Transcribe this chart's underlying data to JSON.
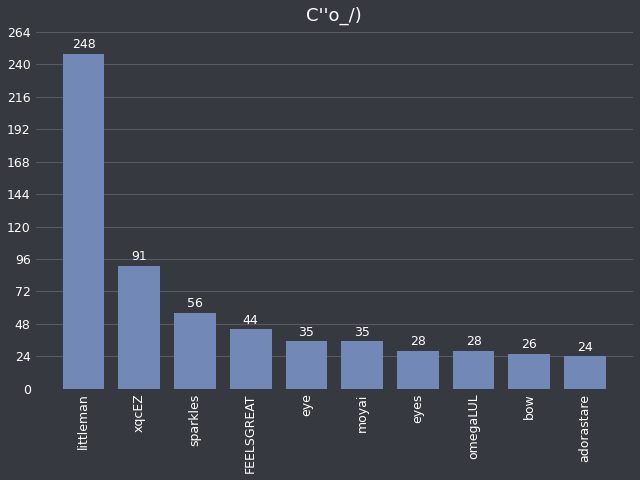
{
  "title": "C''o_/)",
  "categories": [
    "littleman",
    "xqcEZ",
    "sparkles",
    "FEELSGREAT",
    "eye",
    "moyai",
    "eyes",
    "omegaLUL",
    "bow",
    "adorastare"
  ],
  "values": [
    248,
    91,
    56,
    44,
    35,
    35,
    28,
    28,
    26,
    24
  ],
  "bar_color": "#7289b8",
  "background_color": "#36393f",
  "axes_background_color": "#36393f",
  "grid_color": "#555a63",
  "text_color": "#ffffff",
  "title_fontsize": 13,
  "label_fontsize": 9,
  "tick_fontsize": 9,
  "ylim": [
    0,
    264
  ],
  "yticks": [
    0,
    24,
    48,
    72,
    96,
    120,
    144,
    168,
    192,
    216,
    240,
    264
  ],
  "bar_width": 0.75
}
